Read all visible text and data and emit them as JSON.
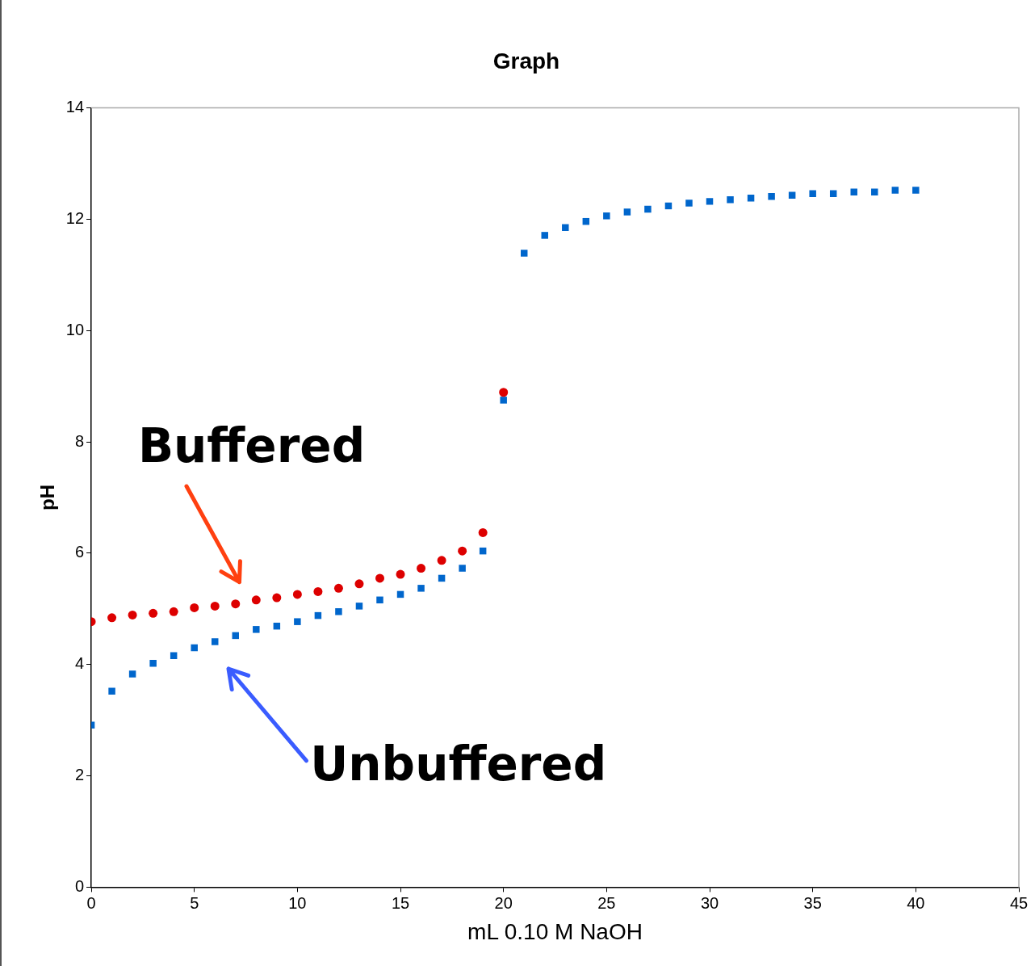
{
  "chart_data": {
    "type": "scatter",
    "title": "Graph",
    "xlabel": "mL 0.10 M NaOH",
    "ylabel": "pH",
    "xlim": [
      0,
      45
    ],
    "xticks": [
      0,
      5,
      10,
      15,
      20,
      25,
      30,
      35,
      40,
      45
    ],
    "ylim": [
      0,
      14
    ],
    "yticks": [
      0,
      2,
      4,
      6,
      8,
      10,
      12,
      14
    ],
    "grid": false,
    "legend": false,
    "series": [
      {
        "color": "#dd0000",
        "marker": "circle",
        "x": [
          0,
          1,
          2,
          3,
          4,
          5,
          6,
          7,
          8,
          9,
          10,
          11,
          12,
          13,
          14,
          15,
          16,
          17,
          18,
          19,
          20
        ],
        "values": [
          4.77,
          4.84,
          4.89,
          4.92,
          4.95,
          5.02,
          5.05,
          5.09,
          5.16,
          5.2,
          5.26,
          5.31,
          5.37,
          5.45,
          5.55,
          5.62,
          5.73,
          5.87,
          6.04,
          6.37,
          8.89
        ]
      },
      {
        "color": "#0066cc",
        "marker": "square",
        "x": [
          0,
          1,
          2,
          3,
          4,
          5,
          6,
          7,
          8,
          9,
          10,
          11,
          12,
          13,
          14,
          15,
          16,
          17,
          18,
          19,
          20,
          21,
          22,
          23,
          24,
          25,
          26,
          27,
          28,
          29,
          30,
          31,
          32,
          33,
          34,
          35,
          36,
          37,
          38,
          39,
          40
        ],
        "values": [
          2.91,
          3.52,
          3.83,
          4.02,
          4.16,
          4.3,
          4.41,
          4.52,
          4.63,
          4.69,
          4.77,
          4.88,
          4.95,
          5.05,
          5.16,
          5.26,
          5.37,
          5.55,
          5.73,
          6.04,
          8.75,
          11.39,
          11.71,
          11.85,
          11.96,
          12.06,
          12.13,
          12.18,
          12.24,
          12.29,
          12.32,
          12.35,
          12.38,
          12.41,
          12.43,
          12.46,
          12.46,
          12.49,
          12.49,
          12.52,
          12.52
        ]
      }
    ],
    "annotations": [
      "Buffered",
      "Unbuffered"
    ]
  }
}
